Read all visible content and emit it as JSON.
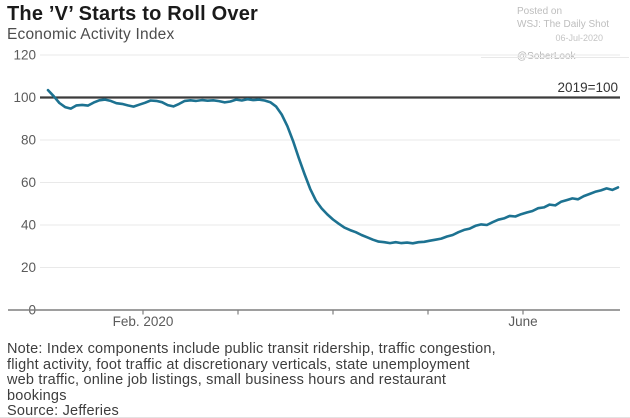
{
  "header": {
    "title": "The ’V’ Starts to Roll Over",
    "subtitle": "Economic Activity Index"
  },
  "attribution": {
    "posted_on": "Posted on",
    "publication": "WSJ: The Daily Shot",
    "date": "06-Jul-2020",
    "handle": "@SoberLook"
  },
  "footer": {
    "note_lines": [
      "Note: Index components include public transit ridership, traffic congestion,",
      "flight activity, foot traffic at discretionary verticals, state unemployment",
      "web traffic, online job listings, small business hours and restaurant",
      "bookings"
    ],
    "note_full": "Note: Index components include public transit ridership, traffic congestion, flight activity, foot traffic at discretionary verticals, state unemployment web traffic, online job listings, small business hours and restaurant bookings",
    "source": "Source: Jefferies"
  },
  "chart_data": {
    "type": "line",
    "title": "The ’V’ Starts to Roll Over",
    "subtitle": "Economic Activity Index",
    "xlabel": "",
    "ylabel": "",
    "ylim": [
      0,
      120
    ],
    "y_ticks": [
      0,
      20,
      40,
      60,
      80,
      100,
      120
    ],
    "x_ticks": [
      {
        "t": 1,
        "label": "Feb. 2020"
      },
      {
        "t": 2,
        "label": ""
      },
      {
        "t": 3,
        "label": ""
      },
      {
        "t": 4,
        "label": ""
      },
      {
        "t": 5,
        "label": "June"
      }
    ],
    "x_unit": "months since Jan 1, 2020",
    "reference_line": {
      "value": 100,
      "label": "2019=100",
      "color": "#3c3c3c"
    },
    "line_color": "#1d7291",
    "grid": true,
    "legend": "none",
    "series": [
      {
        "name": "Economic Activity Index",
        "t": [
          0.0,
          0.06,
          0.12,
          0.18,
          0.24,
          0.3,
          0.36,
          0.42,
          0.48,
          0.54,
          0.6,
          0.66,
          0.72,
          0.78,
          0.84,
          0.9,
          0.96,
          1.02,
          1.08,
          1.14,
          1.2,
          1.26,
          1.32,
          1.38,
          1.44,
          1.5,
          1.56,
          1.62,
          1.68,
          1.74,
          1.8,
          1.86,
          1.92,
          1.98,
          2.04,
          2.1,
          2.16,
          2.22,
          2.28,
          2.34,
          2.4,
          2.46,
          2.52,
          2.58,
          2.64,
          2.7,
          2.76,
          2.82,
          2.88,
          2.94,
          3.0,
          3.06,
          3.12,
          3.18,
          3.24,
          3.3,
          3.36,
          3.42,
          3.48,
          3.54,
          3.6,
          3.66,
          3.72,
          3.78,
          3.84,
          3.9,
          3.96,
          4.02,
          4.08,
          4.14,
          4.2,
          4.26,
          4.32,
          4.38,
          4.44,
          4.5,
          4.56,
          4.62,
          4.68,
          4.74,
          4.8,
          4.86,
          4.92,
          4.98,
          5.04,
          5.1,
          5.16,
          5.22,
          5.28,
          5.34,
          5.4,
          5.46,
          5.52,
          5.58,
          5.64,
          5.7,
          5.76,
          5.82,
          5.88,
          5.94,
          6.0
        ],
        "values": [
          103.5,
          100.6,
          97.4,
          95.5,
          94.8,
          96.3,
          96.5,
          96.2,
          97.6,
          98.7,
          99.0,
          98.4,
          97.3,
          97.0,
          96.3,
          95.7,
          96.6,
          97.5,
          98.6,
          98.4,
          97.8,
          96.4,
          95.8,
          97.0,
          98.4,
          98.7,
          98.4,
          98.8,
          98.5,
          98.7,
          98.3,
          97.7,
          98.1,
          99.0,
          98.6,
          99.2,
          98.8,
          99.0,
          98.6,
          97.8,
          95.8,
          92.0,
          86.5,
          79.5,
          71.5,
          64.0,
          57.0,
          51.5,
          47.8,
          45.0,
          42.6,
          40.6,
          38.8,
          37.6,
          36.6,
          35.3,
          34.2,
          33.1,
          32.2,
          31.9,
          31.5,
          31.9,
          31.5,
          31.7,
          31.4,
          31.9,
          32.1,
          32.6,
          33.1,
          33.6,
          34.6,
          35.3,
          36.6,
          37.7,
          38.3,
          39.6,
          40.3,
          40.0,
          41.3,
          42.5,
          43.1,
          44.3,
          44.0,
          45.1,
          45.9,
          46.6,
          47.9,
          48.3,
          49.6,
          49.2,
          50.9,
          51.7,
          52.5,
          52.1,
          53.6,
          54.6,
          55.6,
          56.3,
          57.2,
          56.5,
          57.7
        ]
      }
    ]
  }
}
